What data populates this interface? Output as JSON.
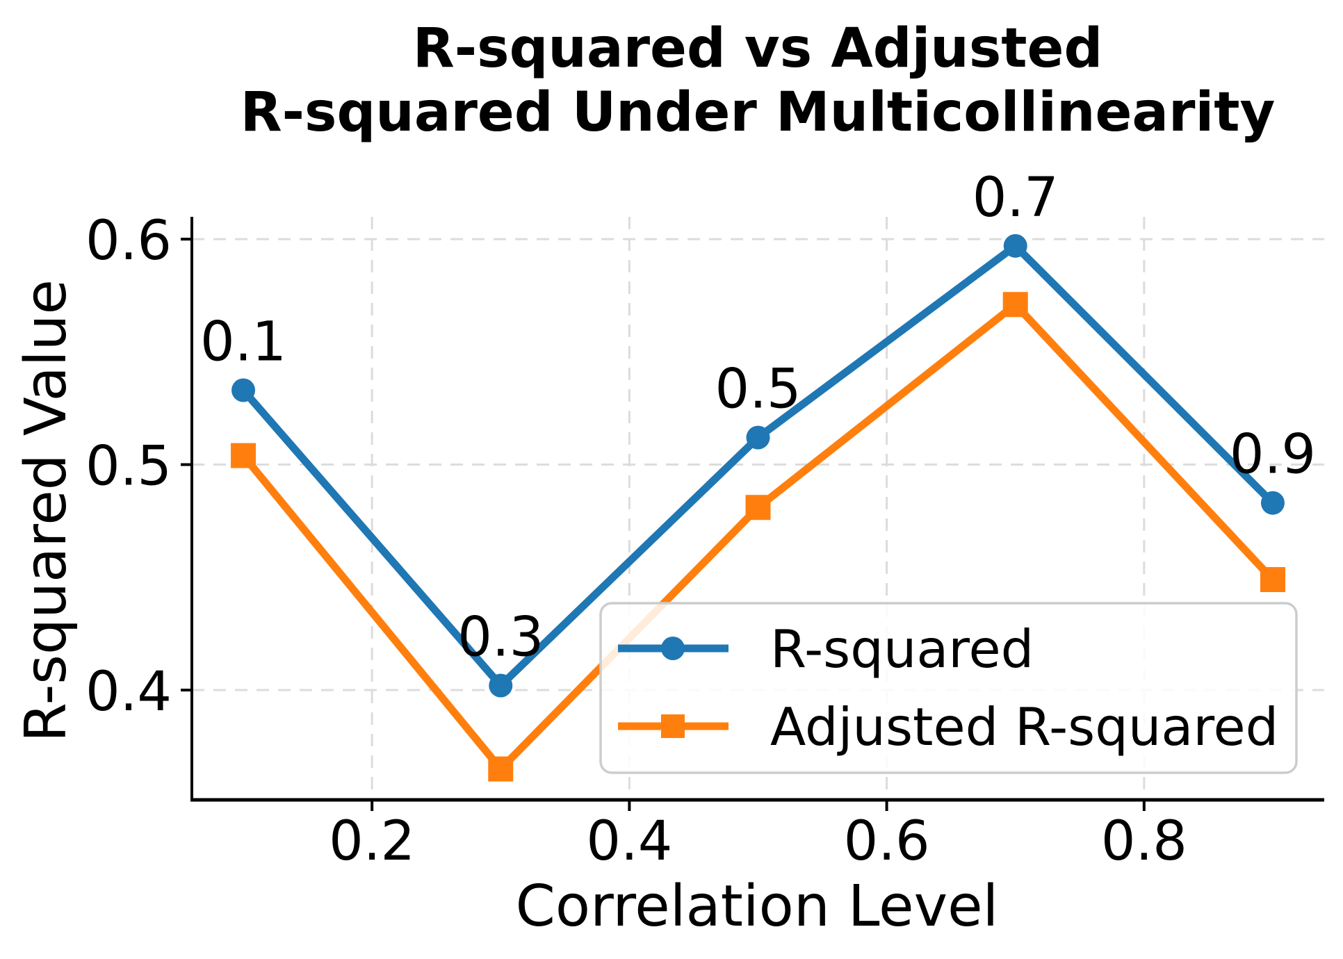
{
  "chart_data": {
    "type": "line",
    "title": "R-squared vs Adjusted R-squared Under Multicollinearity",
    "title_lines": [
      "R-squared vs Adjusted",
      "R-squared Under Multicollinearity"
    ],
    "xlabel": "Correlation Level",
    "ylabel": "R-squared Value",
    "x": [
      0.1,
      0.3,
      0.5,
      0.7,
      0.9
    ],
    "series": [
      {
        "name": "R-squared",
        "color": "#1f77b4",
        "marker": "circle",
        "values": [
          0.533,
          0.402,
          0.512,
          0.597,
          0.483
        ]
      },
      {
        "name": "Adjusted R-squared",
        "color": "#ff7f0e",
        "marker": "square",
        "values": [
          0.504,
          0.365,
          0.481,
          0.571,
          0.449
        ]
      }
    ],
    "point_annotations": [
      "0.1",
      "0.3",
      "0.5",
      "0.7",
      "0.9"
    ],
    "xticks": {
      "values": [
        0.2,
        0.4,
        0.6,
        0.8
      ],
      "labels": [
        "0.2",
        "0.4",
        "0.6",
        "0.8"
      ]
    },
    "yticks": {
      "values": [
        0.4,
        0.5,
        0.6
      ],
      "labels": [
        "0.4",
        "0.5",
        "0.6"
      ]
    },
    "xlim": [
      0.06,
      0.94
    ],
    "ylim": [
      0.3513,
      0.6099
    ],
    "grid": true,
    "grid_color": "#dcdcdc",
    "axis_color": "#000000",
    "background": "#ffffff",
    "legend": {
      "position": "lower right",
      "border_color": "#cccccc",
      "fill_color": "#ffffff"
    }
  }
}
